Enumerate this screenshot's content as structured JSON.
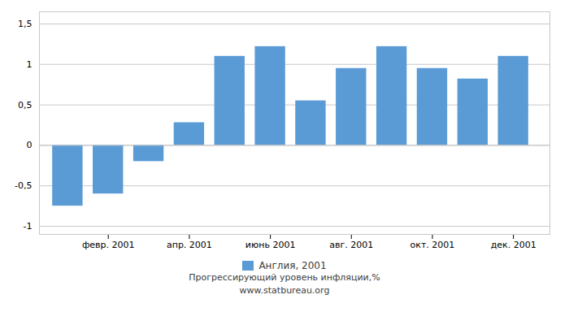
{
  "chart_data": {
    "type": "bar",
    "x": [
      1,
      2,
      3,
      4,
      5,
      6,
      7,
      8,
      9,
      10,
      11,
      12
    ],
    "series": [
      {
        "name": "Англия, 2001",
        "color": "#5b9bd5",
        "values": [
          -0.75,
          -0.6,
          -0.2,
          0.28,
          1.1,
          1.22,
          0.55,
          0.95,
          1.22,
          0.95,
          0.82,
          1.1
        ]
      }
    ],
    "xlim": [
      0.3,
      12.9
    ],
    "xticks": [
      {
        "value": 2,
        "label": "февр. 2001"
      },
      {
        "value": 4,
        "label": "апр. 2001"
      },
      {
        "value": 6,
        "label": "июнь 2001"
      },
      {
        "value": 8,
        "label": "авг. 2001"
      },
      {
        "value": 10,
        "label": "окт. 2001"
      },
      {
        "value": 12,
        "label": "дек. 2001"
      }
    ],
    "ylim": [
      -1.1,
      1.65
    ],
    "yticks": [
      -1,
      {
        "value": -0.5,
        "label": "-0,5"
      },
      0,
      {
        "value": 0.5,
        "label": "0,5"
      },
      1,
      {
        "value": 1.5,
        "label": "1,5"
      }
    ],
    "grid": true,
    "legend": "bottom",
    "annotations": [
      "Прогрессирующий уровень инфляции,%",
      "www.statbureau.org"
    ]
  }
}
